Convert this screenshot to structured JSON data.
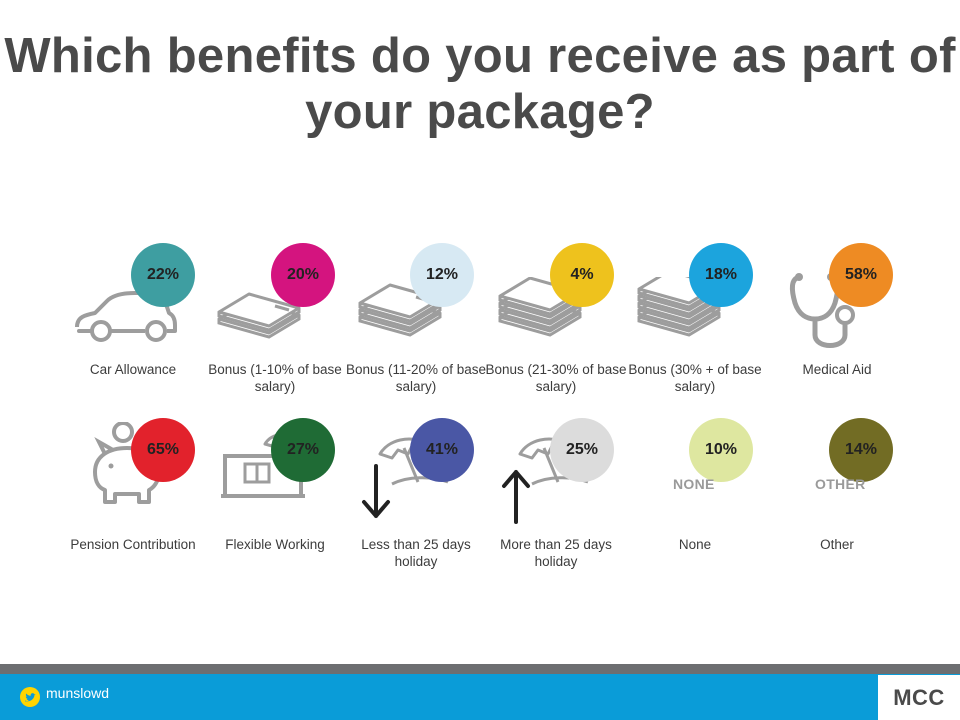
{
  "title": "Which benefits do you receive as part of your package?",
  "items": [
    {
      "label": "Car Allowance",
      "value": "22%",
      "color": "#3e9ea1",
      "icon": "car-icon"
    },
    {
      "label": "Bonus (1-10% of base salary)",
      "value": "20%",
      "color": "#d4147f",
      "icon": "cash-stack-icon"
    },
    {
      "label": "Bonus (11-20% of base salary)",
      "value": "12%",
      "color": "#d7e9f3",
      "icon": "cash-stack-icon"
    },
    {
      "label": "Bonus (21-30% of base salary)",
      "value": "4%",
      "color": "#eec21d",
      "icon": "cash-stack-icon"
    },
    {
      "label": "Bonus (30% + of base salary)",
      "value": "18%",
      "color": "#1ca4dd",
      "icon": "cash-stack-icon"
    },
    {
      "label": "Medical Aid",
      "value": "58%",
      "color": "#ee8b23",
      "icon": "stethoscope-icon"
    },
    {
      "label": "Pension Contribution",
      "value": "65%",
      "color": "#e2222c",
      "icon": "piggy-bank-icon"
    },
    {
      "label": "Flexible Working",
      "value": "27%",
      "color": "#1f6b35",
      "icon": "window-umbrella-icon"
    },
    {
      "label": "Less than 25 days holiday",
      "value": "41%",
      "color": "#4a57a5",
      "icon": "beach-umbrella-down-arrow-icon"
    },
    {
      "label": "More than 25 days holiday",
      "value": "25%",
      "color": "#dcdcdc",
      "icon": "beach-umbrella-up-arrow-icon"
    },
    {
      "label": "None",
      "value": "10%",
      "color": "#dee7a0",
      "icon": "none-text",
      "word": "NONE"
    },
    {
      "label": "Other",
      "value": "14%",
      "color": "#726c24",
      "icon": "other-text",
      "word": "OTHER"
    }
  ],
  "footer": {
    "handle": "munslowd",
    "logo": "MCC",
    "bar_color": "#0a9cd8"
  }
}
